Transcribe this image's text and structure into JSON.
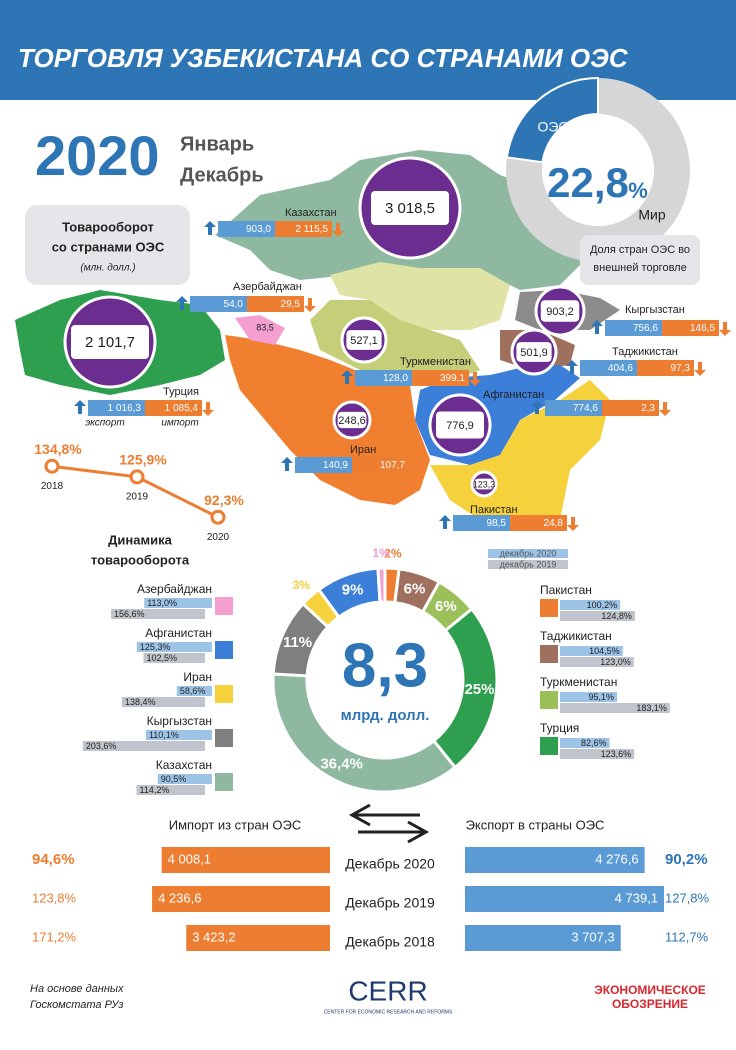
{
  "header": {
    "title": "ТОРГОВЛЯ УЗБЕКИСТАНА СО СТРАНАМИ ОЭС"
  },
  "period": {
    "year": "2020",
    "from": "Январь",
    "to": "Декабрь"
  },
  "turnover_note": {
    "lines": [
      "Товарооборот",
      "со странами ОЭС"
    ],
    "unit": "(млн. долл.)"
  },
  "share": {
    "labels": [
      "ОЭС",
      "Мир"
    ],
    "value": 22.8,
    "value_label": "22,8",
    "unit": "%",
    "caption": [
      "Доля стран ОЭС во",
      "внешней торговле"
    ]
  },
  "map": {
    "legend": [
      "экспорт",
      "импорт"
    ],
    "countries": [
      {
        "name": "Казахстан",
        "total": "3 018,5",
        "export": "903,0",
        "import": "2 115,5"
      },
      {
        "name": "Азербайджан",
        "total": "83,5",
        "export": "54,0",
        "import": "29,5"
      },
      {
        "name": "Турция",
        "total": "2 101,7",
        "export": "1 016,3",
        "import": "1 085,4"
      },
      {
        "name": "Туркменистан",
        "total": "527,1",
        "export": "128,0",
        "import": "399,1"
      },
      {
        "name": "Кыргызстан",
        "total": "903,2",
        "export": "756,6",
        "import": "146,5"
      },
      {
        "name": "Таджикистан",
        "total": "501,9",
        "export": "404,6",
        "import": "97,3"
      },
      {
        "name": "Афганистан",
        "total": "776,9",
        "export": "774,6",
        "import": "2,3"
      },
      {
        "name": "Иран",
        "total": "248,6",
        "export": "140,9",
        "import": "107,7"
      },
      {
        "name": "Пакистан",
        "total": "123,3",
        "export": "98,5",
        "import": "24,8"
      }
    ]
  },
  "dynamics": {
    "title": [
      "Динамика",
      "товарооборота"
    ],
    "years": [
      "2018",
      "2019",
      "2020"
    ],
    "values": [
      134.8,
      125.9,
      92.3
    ],
    "value_labels": [
      "134,8%",
      "125,9%",
      "92,3%"
    ]
  },
  "structure": {
    "total": "8,3",
    "unit": "млрд. долл.",
    "values": [
      2,
      6,
      6,
      25,
      36.4,
      11,
      3,
      9,
      1
    ],
    "value_labels": [
      "2%",
      "6%",
      "6%",
      "25%",
      "36,4%",
      "11%",
      "3%",
      "9%",
      "1%"
    ],
    "colors": [
      "#ed7d31",
      "#a0705e",
      "#9bc05a",
      "#2e9e4f",
      "#8fb8a0",
      "#7f7f7f",
      "#f5d13b",
      "#3b7fd9",
      "#f59fd0"
    ]
  },
  "growth": {
    "legend": [
      "декабрь 2020",
      "декабрь 2019"
    ],
    "countries": [
      {
        "name": "Азербайджан",
        "color": "#f59fd0",
        "values": [
          113.0,
          156.6
        ],
        "value_labels": [
          "113,0%",
          "156,6%"
        ]
      },
      {
        "name": "Афганистан",
        "color": "#3b7fd9",
        "values": [
          125.3,
          102.5
        ],
        "value_labels": [
          "125,3%",
          "102,5%"
        ]
      },
      {
        "name": "Иран",
        "color": "#f5d13b",
        "values": [
          58.6,
          138.4
        ],
        "value_labels": [
          "58,6%",
          "138,4%"
        ]
      },
      {
        "name": "Кыргызстан",
        "color": "#7f7f7f",
        "values": [
          110.1,
          203.6
        ],
        "value_labels": [
          "110,1%",
          "203,6%"
        ]
      },
      {
        "name": "Казахстан",
        "color": "#8fb8a0",
        "values": [
          90.5,
          114.2
        ],
        "value_labels": [
          "90,5%",
          "114,2%"
        ]
      },
      {
        "name": "Пакистан",
        "color": "#ed7d31",
        "values": [
          100.2,
          124.8
        ],
        "value_labels": [
          "100,2%",
          "124,8%"
        ]
      },
      {
        "name": "Таджикистан",
        "color": "#a0705e",
        "values": [
          104.5,
          123.0
        ],
        "value_labels": [
          "104,5%",
          "123,0%"
        ]
      },
      {
        "name": "Туркменистан",
        "color": "#9bc05a",
        "values": [
          95.1,
          183.1
        ],
        "value_labels": [
          "95,1%",
          "183,1%"
        ]
      },
      {
        "name": "Турция",
        "color": "#2e9e4f",
        "values": [
          82.6,
          123.6
        ],
        "value_labels": [
          "82,6%",
          "123,6%"
        ]
      }
    ]
  },
  "trade": {
    "import_title": "Импорт из стран ОЭС",
    "export_title": "Экспорт в страны ОЭС",
    "rows": [
      {
        "period": "Декабрь 2020",
        "import": 4008.1,
        "import_label": "4 008,1",
        "import_growth": "94,6%",
        "export": 4276.6,
        "export_label": "4 276,6",
        "export_growth": "90,2%"
      },
      {
        "period": "Декабрь 2019",
        "import": 4236.6,
        "import_label": "4 236,6",
        "import_growth": "123,8%",
        "export": 4739.1,
        "export_label": "4 739,1",
        "export_growth": "127,8%"
      },
      {
        "period": "Декабрь 2018",
        "import": 3423.2,
        "import_label": "3 423,2",
        "import_growth": "171,2%",
        "export": 3707.3,
        "export_label": "3 707,3",
        "export_growth": "112,7%"
      }
    ]
  },
  "footer": {
    "source": [
      "На основе данных",
      "Госкомстата РУз"
    ],
    "logo": "CERR",
    "logo_sub": "CENTER FOR ECONOMIC RESEARCH AND REFORMS",
    "publisher": [
      "ЭКОНОМИЧЕСКОЕ",
      "ОБОЗРЕНИЕ"
    ]
  }
}
